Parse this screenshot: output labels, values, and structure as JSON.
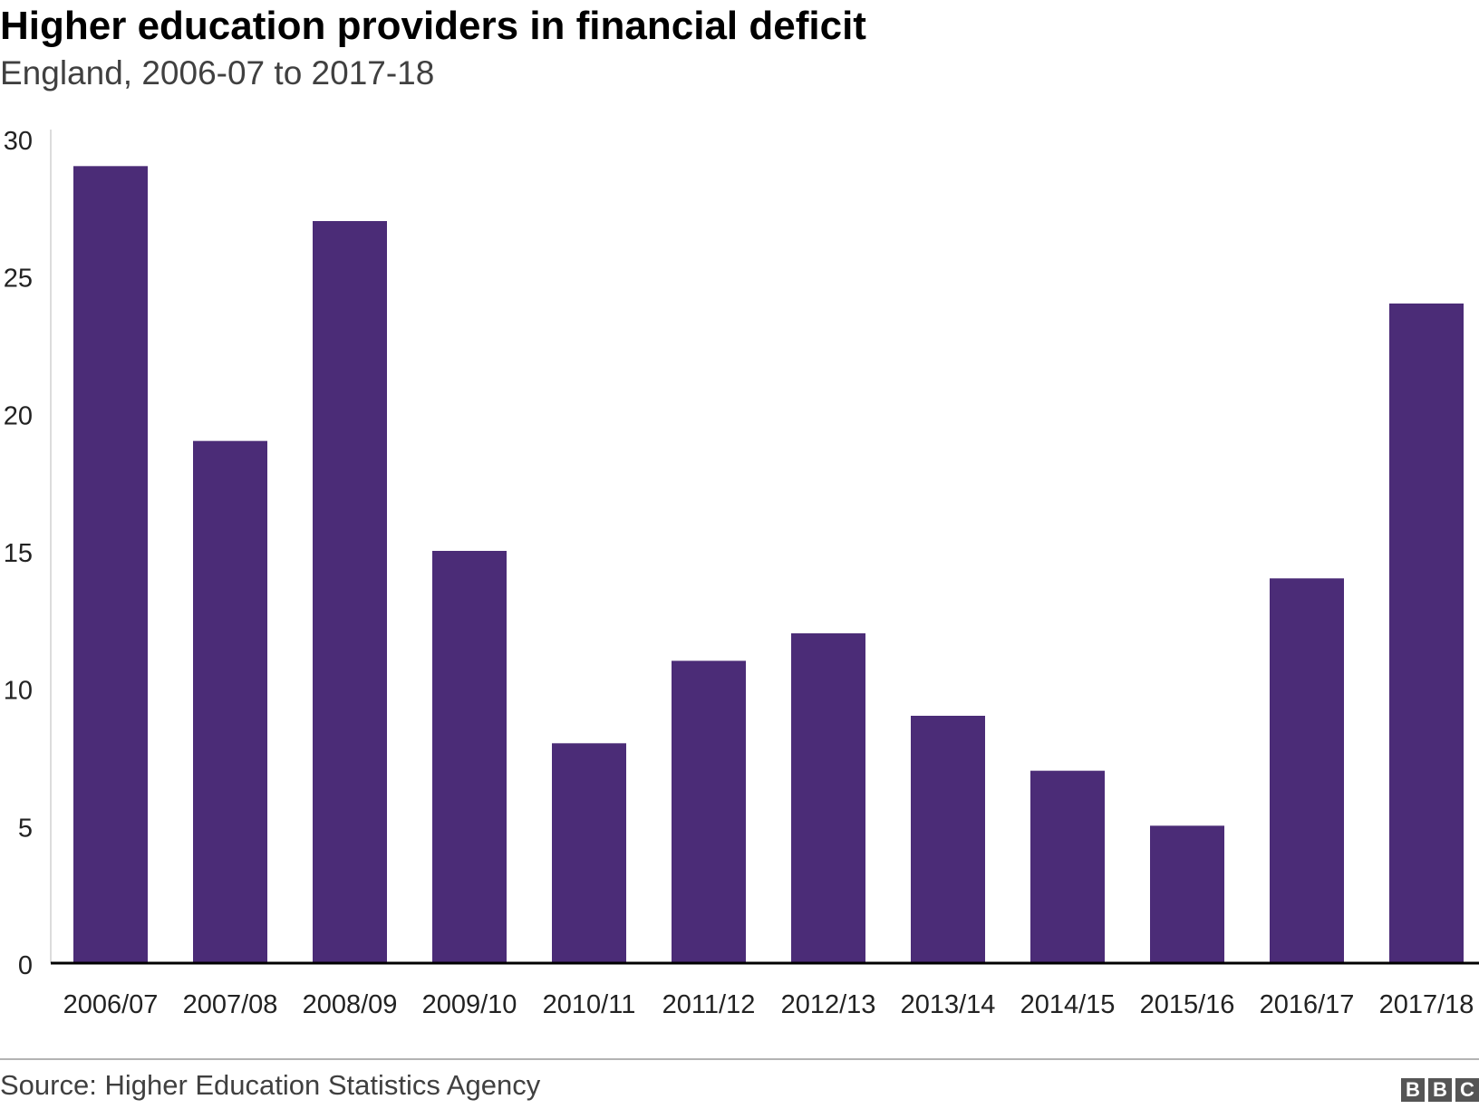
{
  "header": {
    "title": "Higher education providers in financial deficit",
    "subtitle": "England, 2006-07 to 2017-18"
  },
  "footer": {
    "source": "Source: Higher Education Statistics Agency",
    "logo_letters": [
      "B",
      "B",
      "C"
    ]
  },
  "colors": {
    "bar": "#4b2c77",
    "axis": "#000000",
    "tick_text": "#222222"
  },
  "chart_data": {
    "type": "bar",
    "title": "Higher education providers in financial deficit",
    "subtitle": "England, 2006-07 to 2017-18",
    "xlabel": "",
    "ylabel": "",
    "categories": [
      "2006/07",
      "2007/08",
      "2008/09",
      "2009/10",
      "2010/11",
      "2011/12",
      "2012/13",
      "2013/14",
      "2014/15",
      "2015/16",
      "2016/17",
      "2017/18"
    ],
    "values": [
      29,
      19,
      27,
      15,
      8,
      11,
      12,
      9,
      7,
      5,
      14,
      24
    ],
    "ylim": [
      0,
      30
    ],
    "yticks": [
      0,
      5,
      10,
      15,
      20,
      25,
      30
    ],
    "grid": false,
    "legend": "none"
  }
}
